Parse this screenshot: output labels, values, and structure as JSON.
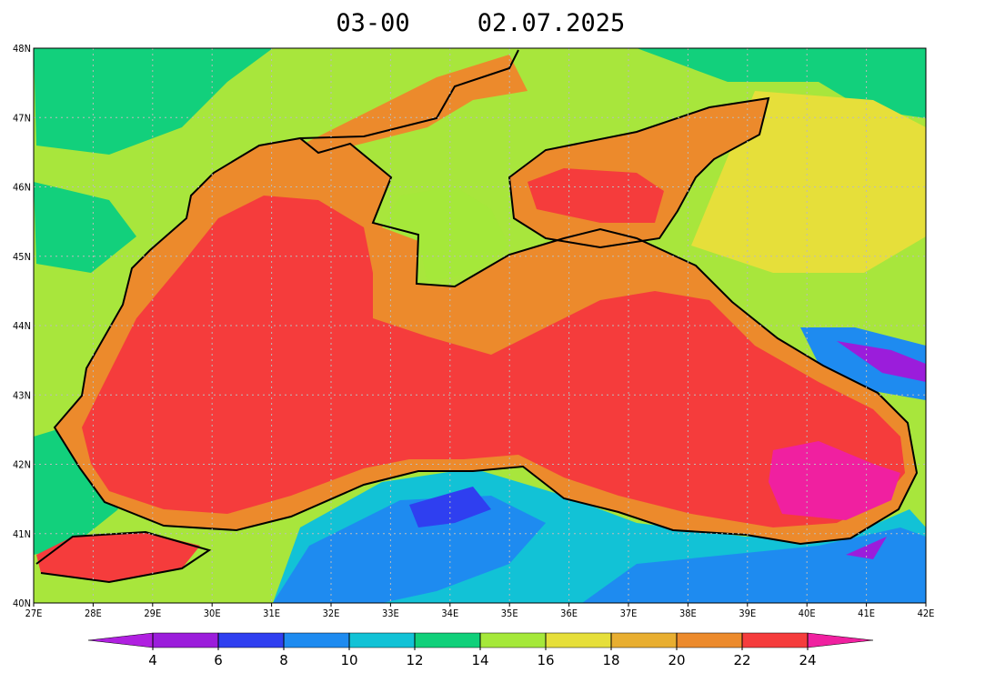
{
  "header": {
    "time": "03-00",
    "date": "02.07.2025"
  },
  "map": {
    "lon_labels": [
      "27E",
      "28E",
      "29E",
      "30E",
      "31E",
      "32E",
      "33E",
      "34E",
      "35E",
      "36E",
      "37E",
      "38E",
      "39E",
      "40E",
      "41E",
      "42E"
    ],
    "lat_labels": [
      "48N",
      "47N",
      "46N",
      "45N",
      "44N",
      "43N",
      "42N",
      "41N",
      "40N"
    ]
  },
  "colorbar": {
    "ticks": [
      4,
      6,
      8,
      10,
      12,
      14,
      16,
      18,
      20,
      22,
      24
    ],
    "colors": [
      "#9b1ddb",
      "#2f3ff0",
      "#1e8bf0",
      "#12c2d6",
      "#10d07a",
      "#a5e83a",
      "#e6df3a",
      "#e8ae30",
      "#ec8a2c",
      "#f53c3c"
    ],
    "under_color": "#b020e0",
    "over_color": "#f020a0"
  }
}
